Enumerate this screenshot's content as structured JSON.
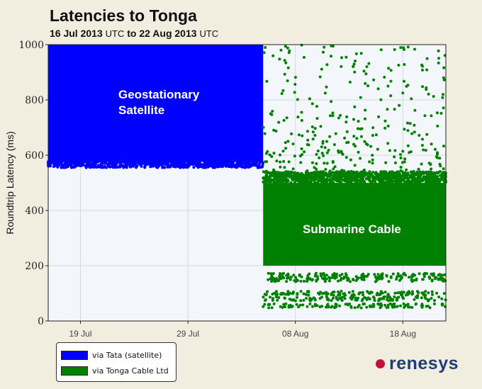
{
  "title": "Latencies to Tonga",
  "subtitle": {
    "start_date": "16 Jul 2013",
    "start_tz": "UTC",
    "connector": "to",
    "end_date": "22 Aug 2013",
    "end_tz": "UTC"
  },
  "chart_data": {
    "type": "scatter",
    "ylabel": "Roundtrip Latency (ms)",
    "xlabel": "",
    "ylim": [
      0,
      1000
    ],
    "y_ticks": [
      0,
      200,
      400,
      600,
      800,
      1000
    ],
    "x_range": [
      "2013-07-16",
      "2013-08-22"
    ],
    "x_ticks": [
      {
        "date": "2013-07-19",
        "label": "19 Jul"
      },
      {
        "date": "2013-07-29",
        "label": "29 Jul"
      },
      {
        "date": "2013-08-08",
        "label": "08 Aug"
      },
      {
        "date": "2013-08-18",
        "label": "18 Aug"
      }
    ],
    "grid": true,
    "legend_position": "bottom-left",
    "annotations": [
      {
        "lines": [
          "Geostationary",
          "Satellite"
        ],
        "series": "via Tata (satellite)"
      },
      {
        "lines": [
          "Submarine Cable"
        ],
        "series": "via Tonga Cable Ltd"
      }
    ],
    "series": [
      {
        "name": "via Tata (satellite)",
        "color": "#0000ff",
        "x_start": "2013-07-16",
        "x_end": "2013-08-05",
        "y_range": [
          560,
          1000
        ],
        "outliers": []
      },
      {
        "name": "via Tonga Cable Ltd",
        "color": "#008000",
        "x_start": "2013-08-05",
        "x_end": "2013-08-22",
        "y_range": [
          200,
          510
        ],
        "bands": [
          165,
          150,
          100,
          80,
          55
        ],
        "outliers_y_range": [
          510,
          1000
        ]
      }
    ]
  },
  "legend": {
    "items": [
      {
        "label": "via Tata (satellite)",
        "color": "#0000ff"
      },
      {
        "label": "via Tonga Cable Ltd",
        "color": "#008000"
      }
    ]
  },
  "brand": {
    "name": "renesys",
    "dot_color": "#c0123a"
  }
}
